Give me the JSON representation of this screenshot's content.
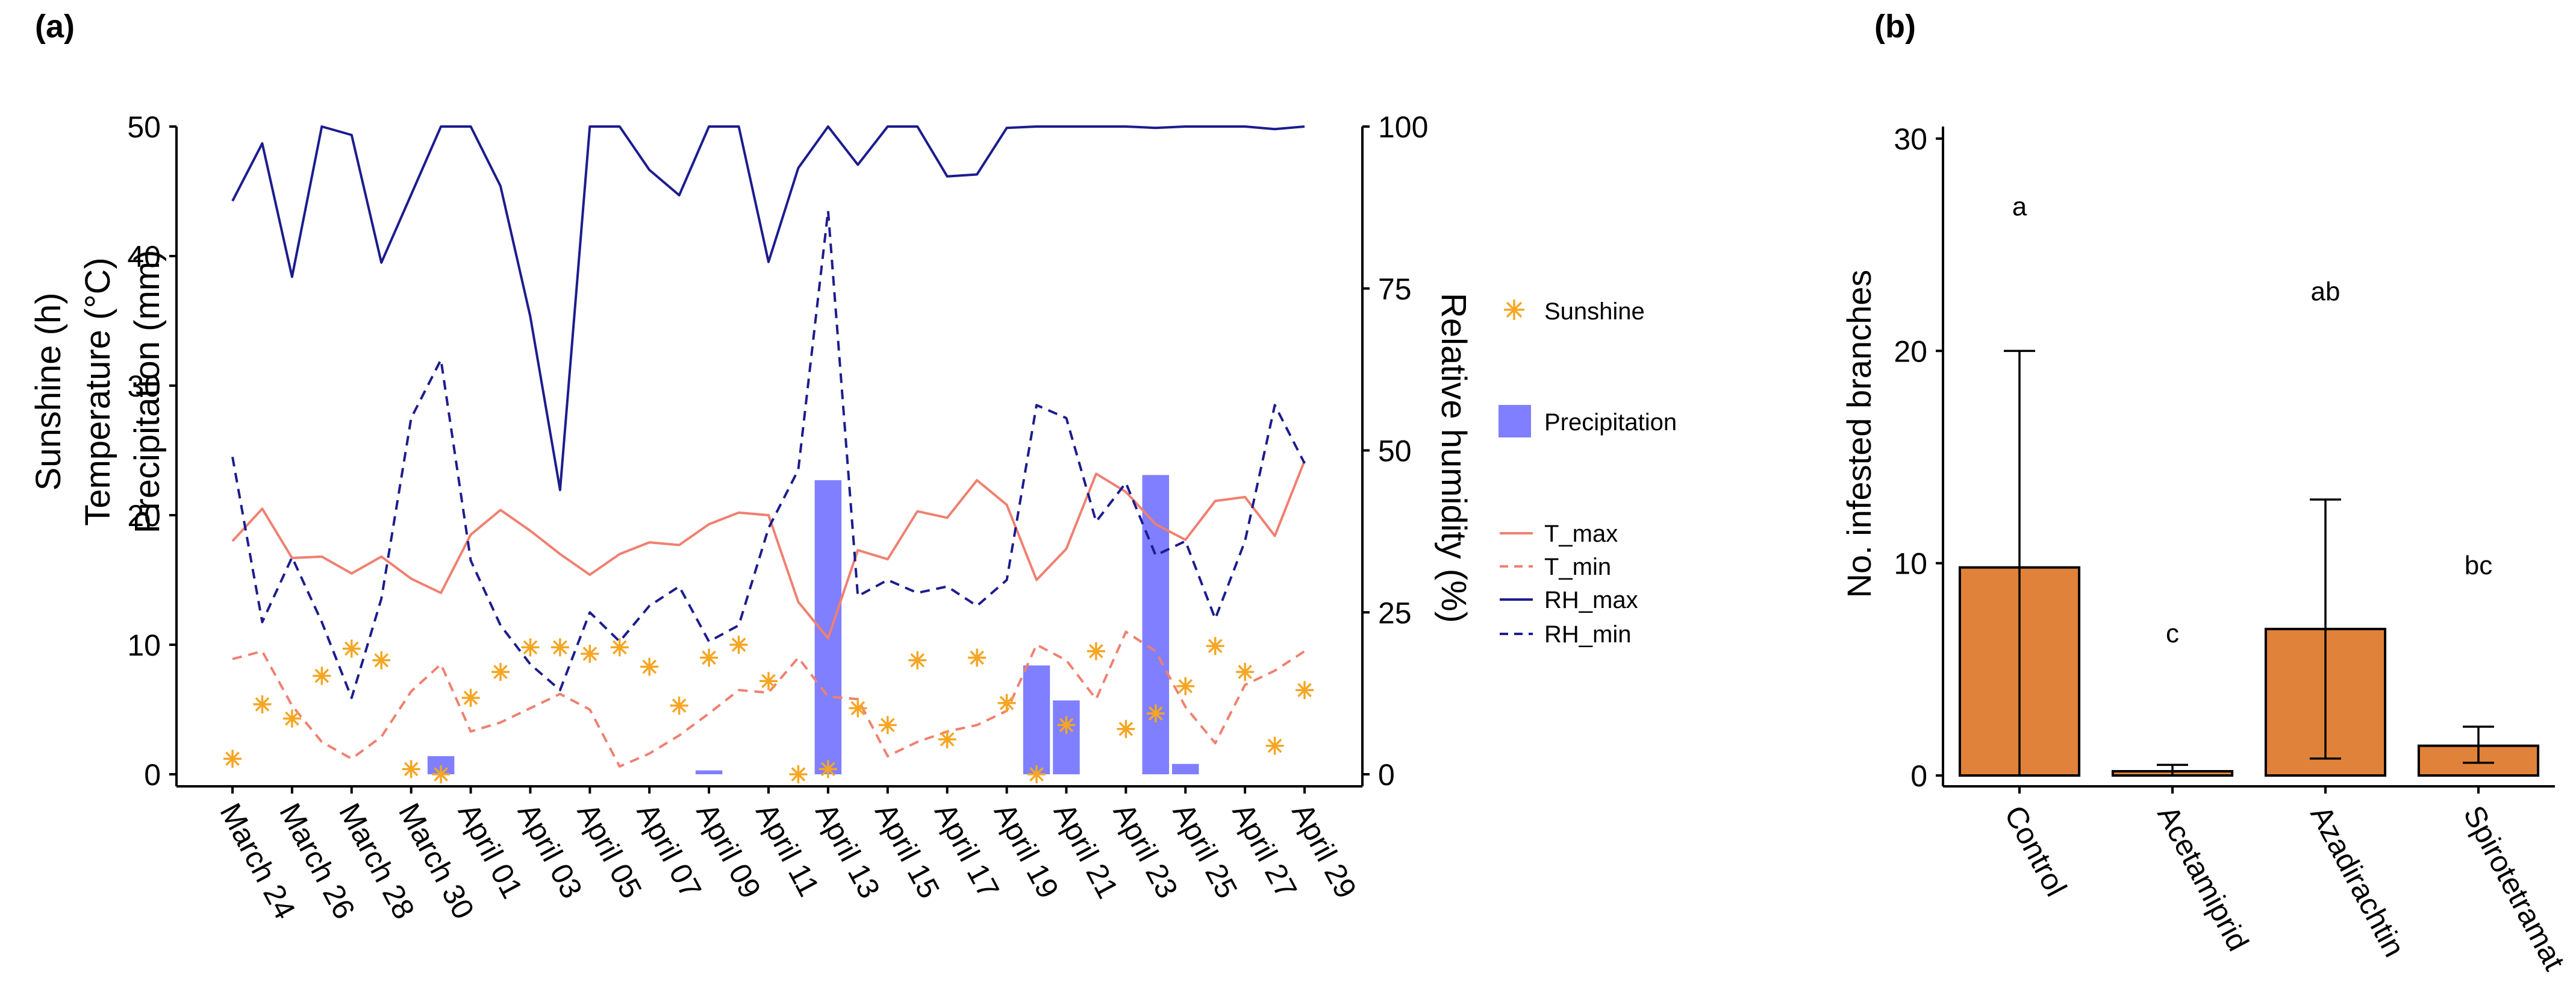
{
  "panels": {
    "a": {
      "label": "(a)"
    },
    "b": {
      "label": "(b)"
    }
  },
  "colors": {
    "t_max": "#F08070",
    "t_min": "#F08070",
    "rh_max": "#1C1C8E",
    "rh_min": "#1C1C8E",
    "sunshine": "#F5A623",
    "precipitation": "#7F7FFF",
    "bar_fill": "#E0823A",
    "bar_stroke": "#000000"
  },
  "chart_data": [
    {
      "type": "line",
      "panel": "(a)",
      "y_left_label_lines": [
        "Sunshine (h)",
        "Temperature (°C)",
        "Precipitation (mm)"
      ],
      "y_right_label": "Relative humidity (%)",
      "ylim_left": [
        0,
        50
      ],
      "ylim_right": [
        0,
        100
      ],
      "y_left_ticks": [
        "0",
        "10",
        "20",
        "30",
        "40",
        "50"
      ],
      "y_right_ticks": [
        "0",
        "25",
        "50",
        "75",
        "100"
      ],
      "x_tick_labels": [
        "March 24",
        "March 26",
        "March 28",
        "March 30",
        "April 01",
        "April 03",
        "April 05",
        "April 07",
        "April 09",
        "April 11",
        "April 13",
        "April 15",
        "April 17",
        "April 19",
        "April 21",
        "April 23",
        "April 25",
        "April 27",
        "April 29"
      ],
      "x_days": [
        0,
        1,
        2,
        3,
        4,
        5,
        6,
        7,
        8,
        9,
        10,
        11,
        12,
        13,
        14,
        15,
        16,
        17,
        18,
        19,
        20,
        21,
        22,
        23,
        24,
        25,
        26,
        27,
        28,
        29,
        30,
        31,
        32,
        33,
        34,
        35,
        36
      ],
      "legend": {
        "sunshine": "Sunshine",
        "precipitation": "Precipitation",
        "t_max": "T_max",
        "t_min": "T_min",
        "rh_max": "RH_max",
        "rh_min": "RH_min"
      },
      "series": [
        {
          "name": "T_max",
          "axis": "left",
          "style": "solid",
          "values": [
            18.0,
            20.5,
            16.7,
            16.8,
            15.5,
            16.8,
            15.1,
            14.0,
            18.5,
            20.4,
            18.8,
            17.0,
            15.4,
            17.0,
            17.9,
            17.7,
            19.3,
            20.2,
            20.0,
            13.3,
            10.5,
            17.3,
            16.6,
            20.3,
            19.8,
            22.7,
            20.8,
            15.0,
            17.4,
            23.2,
            21.8,
            19.3,
            18.1,
            21.1,
            21.4,
            18.4,
            24.2
          ]
        },
        {
          "name": "T_min",
          "axis": "left",
          "style": "dashed",
          "values": [
            8.9,
            9.5,
            5.3,
            2.5,
            1.2,
            2.9,
            6.4,
            8.5,
            3.3,
            4.0,
            5.1,
            6.2,
            5.0,
            0.6,
            1.6,
            3.0,
            4.7,
            6.5,
            6.3,
            9.0,
            6.0,
            5.8,
            1.4,
            2.5,
            3.3,
            3.8,
            4.9,
            10.0,
            8.8,
            5.8,
            11.0,
            9.5,
            5.2,
            2.4,
            6.9,
            8.0,
            9.5
          ]
        },
        {
          "name": "RH_max",
          "axis": "right",
          "style": "solid",
          "values": [
            88.5,
            97.4,
            76.8,
            100.0,
            98.7,
            79.0,
            89.5,
            100.0,
            100.0,
            90.8,
            70.7,
            43.9,
            100.0,
            100.0,
            93.3,
            89.4,
            100.0,
            100.0,
            79.1,
            93.6,
            100.0,
            94.1,
            100.0,
            100.0,
            92.3,
            92.6,
            99.8,
            100.0,
            100.0,
            100.0,
            100.0,
            99.8,
            100.0,
            100.0,
            100.0,
            99.6,
            100.0
          ]
        },
        {
          "name": "RH_min",
          "axis": "right",
          "style": "dashed",
          "values": [
            49.0,
            23.5,
            33.5,
            23.5,
            11.8,
            27.1,
            55.0,
            64.0,
            33.0,
            23.0,
            17.0,
            13.0,
            25.0,
            20.5,
            26.0,
            29.0,
            20.5,
            23.0,
            38.0,
            47.0,
            87.0,
            27.5,
            30.0,
            28.0,
            29.0,
            26.0,
            30.0,
            57.0,
            55.0,
            39.0,
            45.0,
            33.8,
            36.0,
            24.0,
            36.0,
            57.0,
            48.0
          ]
        }
      ],
      "sunshine_points": [
        [
          0,
          1.2
        ],
        [
          1,
          5.4
        ],
        [
          2,
          4.3
        ],
        [
          3,
          7.6
        ],
        [
          4,
          9.7
        ],
        [
          5,
          8.8
        ],
        [
          6,
          0.4
        ],
        [
          7,
          0.0
        ],
        [
          8,
          5.9
        ],
        [
          9,
          7.9
        ],
        [
          10,
          9.8
        ],
        [
          11,
          9.8
        ],
        [
          12,
          9.3
        ],
        [
          13,
          9.8
        ],
        [
          14,
          8.3
        ],
        [
          15,
          5.3
        ],
        [
          16,
          9.0
        ],
        [
          17,
          10.0
        ],
        [
          18,
          7.2
        ],
        [
          19,
          0.0
        ],
        [
          20,
          0.4
        ],
        [
          21,
          5.1
        ],
        [
          22,
          3.8
        ],
        [
          23,
          8.8
        ],
        [
          24,
          2.7
        ],
        [
          25,
          9.0
        ],
        [
          26,
          5.5
        ],
        [
          27,
          0.0
        ],
        [
          28,
          3.8
        ],
        [
          29,
          9.5
        ],
        [
          30,
          3.5
        ],
        [
          31,
          4.7
        ],
        [
          32,
          6.8
        ],
        [
          33,
          9.9
        ],
        [
          34,
          7.9
        ],
        [
          35,
          2.2
        ],
        [
          36,
          6.5
        ]
      ],
      "precipitation_bars": [
        [
          7,
          1.4
        ],
        [
          16,
          0.3
        ],
        [
          20,
          22.7
        ],
        [
          27,
          8.4
        ],
        [
          28,
          5.7
        ],
        [
          31,
          23.1
        ],
        [
          32,
          0.8
        ]
      ]
    },
    {
      "type": "bar",
      "panel": "(b)",
      "ylabel": "No. infested branches",
      "ylim": [
        0,
        30
      ],
      "y_ticks": [
        "0",
        "10",
        "20",
        "30"
      ],
      "categories": [
        "Control",
        "Acetamiprid",
        "Azadirachtin",
        "Spirotetramat"
      ],
      "values": [
        9.8,
        0.2,
        6.9,
        1.4
      ],
      "err_low": [
        0.0,
        0.0,
        0.8,
        0.6
      ],
      "err_high": [
        20.0,
        0.5,
        13.0,
        2.3
      ],
      "letters": [
        "a",
        "c",
        "ab",
        "bc"
      ],
      "letter_y": [
        26.8,
        6.7,
        22.8,
        9.9
      ]
    }
  ]
}
